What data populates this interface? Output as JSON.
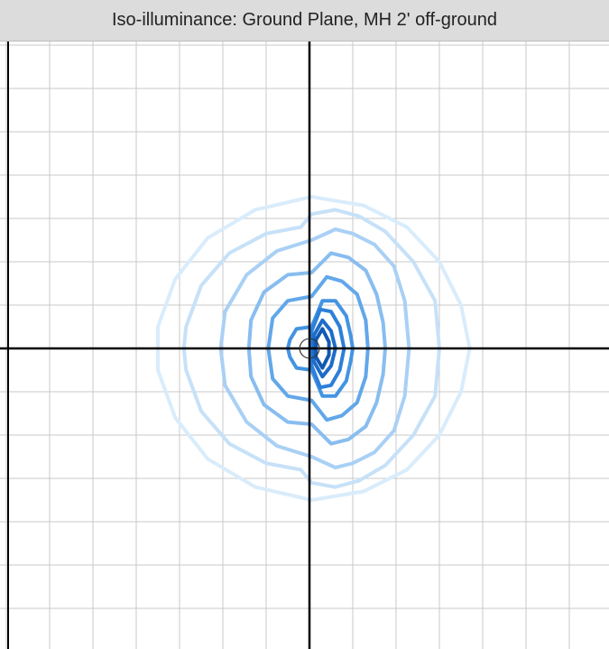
{
  "header": {
    "title": "Iso-illuminance: Ground Plane, MH 2' off-ground"
  },
  "chart_data": {
    "type": "contour",
    "title": "Iso-illuminance: Ground Plane, MH 2' off-ground",
    "xlabel": "",
    "ylabel": "",
    "xlim": [
      -7.5,
      7.5
    ],
    "ylim": [
      -7.0,
      7.0
    ],
    "grid": true,
    "grid_step": 2,
    "axes_color": "#000000",
    "grid_color": "#c8c8c8",
    "fixture_marker": {
      "x": 0,
      "y": 0,
      "r": 0.45,
      "color": "#333333"
    },
    "series": [
      {
        "color": "#d9ecfb",
        "points": [
          [
            0.1,
            7.0
          ],
          [
            2.5,
            6.6
          ],
          [
            4.5,
            5.6
          ],
          [
            6.0,
            4.0
          ],
          [
            7.0,
            2.0
          ],
          [
            7.4,
            0
          ],
          [
            7.0,
            -2.0
          ],
          [
            6.0,
            -4.0
          ],
          [
            4.5,
            -5.6
          ],
          [
            2.5,
            -6.6
          ],
          [
            0.1,
            -7.0
          ],
          [
            -2.5,
            -6.4
          ],
          [
            -4.7,
            -5.1
          ],
          [
            -6.2,
            -3.2
          ],
          [
            -7.0,
            -1.0
          ],
          [
            -7.0,
            1.0
          ],
          [
            -6.2,
            3.2
          ],
          [
            -4.7,
            5.1
          ],
          [
            -2.5,
            6.4
          ],
          [
            0.1,
            7.0
          ]
        ]
      },
      {
        "color": "#c6e1f8",
        "points": [
          [
            0.1,
            6.2
          ],
          [
            1.2,
            6.4
          ],
          [
            2.3,
            6.1
          ],
          [
            3.5,
            5.4
          ],
          [
            4.8,
            4.0
          ],
          [
            5.8,
            2.2
          ],
          [
            6.0,
            0
          ],
          [
            5.8,
            -2.2
          ],
          [
            4.8,
            -4.0
          ],
          [
            3.5,
            -5.4
          ],
          [
            2.3,
            -6.1
          ],
          [
            1.2,
            -6.4
          ],
          [
            0.1,
            -6.2
          ],
          [
            -0.4,
            -5.6
          ],
          [
            -2.0,
            -5.3
          ],
          [
            -3.7,
            -4.4
          ],
          [
            -5.0,
            -2.9
          ],
          [
            -5.7,
            -1.0
          ],
          [
            -5.8,
            0
          ],
          [
            -5.7,
            1.0
          ],
          [
            -5.0,
            2.9
          ],
          [
            -3.7,
            4.4
          ],
          [
            -2.0,
            5.3
          ],
          [
            -0.4,
            5.6
          ],
          [
            0.1,
            6.2
          ]
        ]
      },
      {
        "color": "#a9d0f5",
        "points": [
          [
            0.1,
            5.0
          ],
          [
            1.2,
            5.5
          ],
          [
            2.0,
            5.3
          ],
          [
            3.0,
            4.8
          ],
          [
            3.9,
            3.8
          ],
          [
            4.4,
            2.2
          ],
          [
            4.6,
            0
          ],
          [
            4.4,
            -2.2
          ],
          [
            3.9,
            -3.8
          ],
          [
            3.0,
            -4.8
          ],
          [
            2.0,
            -5.3
          ],
          [
            1.2,
            -5.5
          ],
          [
            0.1,
            -5.0
          ],
          [
            -1.5,
            -4.5
          ],
          [
            -2.9,
            -3.4
          ],
          [
            -3.9,
            -1.7
          ],
          [
            -4.1,
            0
          ],
          [
            -3.9,
            1.7
          ],
          [
            -2.9,
            3.4
          ],
          [
            -1.5,
            4.5
          ],
          [
            0.1,
            5.0
          ]
        ]
      },
      {
        "color": "#88bdf0",
        "points": [
          [
            0.1,
            3.5
          ],
          [
            1.0,
            4.4
          ],
          [
            1.8,
            4.2
          ],
          [
            2.6,
            3.6
          ],
          [
            3.1,
            2.5
          ],
          [
            3.4,
            1.2
          ],
          [
            3.5,
            0
          ],
          [
            3.4,
            -1.2
          ],
          [
            3.1,
            -2.5
          ],
          [
            2.6,
            -3.6
          ],
          [
            1.8,
            -4.2
          ],
          [
            1.0,
            -4.4
          ],
          [
            0.1,
            -3.5
          ],
          [
            -1.0,
            -3.4
          ],
          [
            -2.1,
            -2.6
          ],
          [
            -2.7,
            -1.3
          ],
          [
            -2.8,
            0
          ],
          [
            -2.7,
            1.3
          ],
          [
            -2.1,
            2.6
          ],
          [
            -1.0,
            3.4
          ],
          [
            0.1,
            3.5
          ]
        ]
      },
      {
        "color": "#62a7ea",
        "points": [
          [
            0.1,
            2.4
          ],
          [
            0.8,
            3.3
          ],
          [
            1.5,
            3.1
          ],
          [
            2.2,
            2.5
          ],
          [
            2.6,
            1.3
          ],
          [
            2.7,
            0
          ],
          [
            2.6,
            -1.3
          ],
          [
            2.2,
            -2.5
          ],
          [
            1.5,
            -3.1
          ],
          [
            0.8,
            -3.3
          ],
          [
            0.1,
            -2.4
          ],
          [
            -1.0,
            -2.2
          ],
          [
            -1.7,
            -1.4
          ],
          [
            -1.9,
            0
          ],
          [
            -1.7,
            1.4
          ],
          [
            -1.0,
            2.2
          ],
          [
            0.1,
            2.4
          ]
        ]
      },
      {
        "color": "#4494e2",
        "points": [
          [
            0.1,
            1.0
          ],
          [
            0.6,
            2.2
          ],
          [
            1.2,
            2.2
          ],
          [
            1.7,
            1.5
          ],
          [
            1.9,
            0.6
          ],
          [
            2.0,
            0
          ],
          [
            1.9,
            -0.6
          ],
          [
            1.7,
            -1.5
          ],
          [
            1.2,
            -2.2
          ],
          [
            0.6,
            -2.2
          ],
          [
            0.1,
            -1.0
          ],
          [
            -0.6,
            -0.9
          ],
          [
            -0.9,
            -0.4
          ],
          [
            -1.0,
            0
          ],
          [
            -0.9,
            0.4
          ],
          [
            -0.6,
            0.9
          ],
          [
            0.1,
            1.0
          ]
        ]
      },
      {
        "color": "#2d7fd9",
        "points": [
          [
            0.1,
            0.8
          ],
          [
            0.5,
            1.8
          ],
          [
            1.0,
            1.7
          ],
          [
            1.4,
            1.0
          ],
          [
            1.6,
            0
          ],
          [
            1.4,
            -1.0
          ],
          [
            1.0,
            -1.7
          ],
          [
            0.5,
            -1.8
          ],
          [
            0.1,
            -0.8
          ],
          [
            0.1,
            0.8
          ]
        ]
      },
      {
        "color": "#1d6cc9",
        "points": [
          [
            0.2,
            0.6
          ],
          [
            0.6,
            1.3
          ],
          [
            1.0,
            0.8
          ],
          [
            1.2,
            0
          ],
          [
            1.0,
            -0.8
          ],
          [
            0.6,
            -1.3
          ],
          [
            0.2,
            -0.6
          ],
          [
            0.2,
            0.6
          ]
        ]
      },
      {
        "color": "#1259b3",
        "points": [
          [
            0.3,
            0.4
          ],
          [
            0.6,
            0.9
          ],
          [
            0.9,
            0.3
          ],
          [
            0.9,
            -0.3
          ],
          [
            0.6,
            -0.9
          ],
          [
            0.3,
            -0.4
          ],
          [
            0.3,
            0.4
          ]
        ]
      }
    ]
  }
}
